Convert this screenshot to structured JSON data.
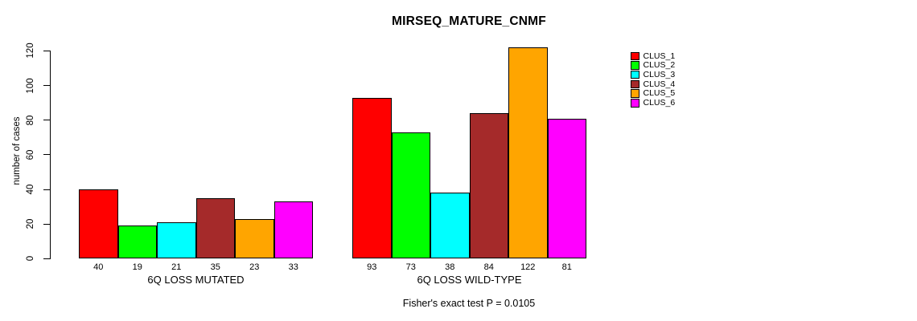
{
  "chart_data": {
    "type": "bar",
    "title": "MIRSEQ_MATURE_CNMF",
    "ylabel": "number of cases",
    "xlabel": "",
    "ylim": [
      0,
      120
    ],
    "yticks": [
      0,
      20,
      40,
      60,
      80,
      100,
      120
    ],
    "grid": false,
    "legend_position": "right",
    "categories": [
      "6Q LOSS MUTATED",
      "6Q LOSS WILD-TYPE"
    ],
    "series": [
      {
        "name": "CLUS_1",
        "color": "#ff0000",
        "values": [
          40,
          93
        ]
      },
      {
        "name": "CLUS_2",
        "color": "#00ff00",
        "values": [
          19,
          73
        ]
      },
      {
        "name": "CLUS_3",
        "color": "#00ffff",
        "values": [
          21,
          38
        ]
      },
      {
        "name": "CLUS_4",
        "color": "#a52a2a",
        "values": [
          35,
          84
        ]
      },
      {
        "name": "CLUS_5",
        "color": "#ffa500",
        "values": [
          23,
          122
        ]
      },
      {
        "name": "CLUS_6",
        "color": "#ff00ff",
        "values": [
          33,
          81
        ]
      }
    ],
    "bar_value_labels": [
      [
        "40",
        "19",
        "21",
        "35",
        "23",
        "33"
      ],
      [
        "93",
        "73",
        "38",
        "84",
        "122",
        "81"
      ]
    ],
    "annotation": "Fisher's exact test P = 0.0105"
  }
}
